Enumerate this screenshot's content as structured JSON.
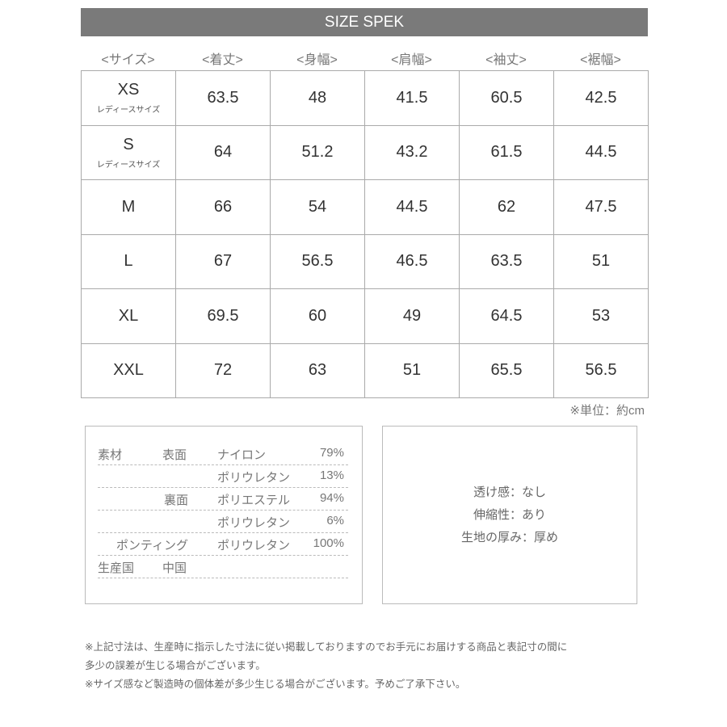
{
  "title": "SIZE SPEK",
  "columns": [
    "<サイズ>",
    "<着丈>",
    "<身幅>",
    "<肩幅>",
    "<袖丈>",
    "<裾幅>"
  ],
  "rows": [
    {
      "size": "XS",
      "note": "レディースサイズ",
      "values": [
        "63.5",
        "48",
        "41.5",
        "60.5",
        "42.5"
      ]
    },
    {
      "size": "S",
      "note": "レディースサイズ",
      "values": [
        "64",
        "51.2",
        "43.2",
        "61.5",
        "44.5"
      ]
    },
    {
      "size": "M",
      "values": [
        "66",
        "54",
        "44.5",
        "62",
        "47.5"
      ]
    },
    {
      "size": "L",
      "values": [
        "67",
        "56.5",
        "46.5",
        "63.5",
        "51"
      ]
    },
    {
      "size": "XL",
      "values": [
        "69.5",
        "60",
        "49",
        "64.5",
        "53"
      ]
    },
    {
      "size": "XXL",
      "values": [
        "72",
        "63",
        "51",
        "65.5",
        "56.5"
      ]
    }
  ],
  "unit": "※単位：約cm",
  "materials": [
    {
      "label": "素材",
      "part": "表面",
      "fiber": "ナイロン",
      "pct": "79%"
    },
    {
      "label": "",
      "part": "",
      "fiber": "ポリウレタン",
      "pct": "13%"
    },
    {
      "label": "",
      "part": "裏面",
      "fiber": "ポリエステル",
      "pct": "94%"
    },
    {
      "label": "",
      "part": "",
      "fiber": "ポリウレタン",
      "pct": "6%"
    },
    {
      "label": "",
      "part": "ポンティング",
      "fiber": "ポリウレタン",
      "pct": "100%"
    },
    {
      "label": "生産国",
      "part": "中国",
      "fiber": "",
      "pct": ""
    }
  ],
  "features": [
    "透け感：なし",
    "伸縮性：あり",
    "生地の厚み：厚め"
  ],
  "notes": [
    "※上記寸法は、生産時に指示した寸法に従い掲載しておりますのでお手元にお届けする商品と表記寸の間に",
    "多少の誤差が生じる場合がございます。",
    "※サイズ感など製造時の個体差が多少生じる場合がございます。予めご了承下さい。"
  ]
}
